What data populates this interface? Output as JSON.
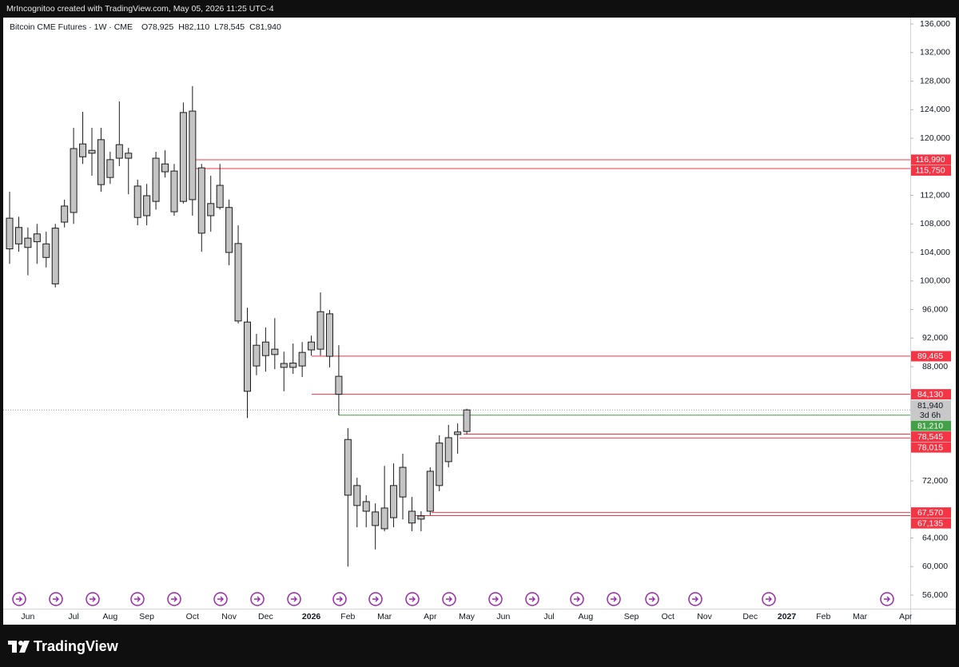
{
  "top_bar": "MrIncognitoo created with TradingView.com, May 05, 2026 11:25 UTC-4",
  "footer": "TradingView",
  "chart_data": {
    "type": "candlestick",
    "title": "Bitcoin CME Futures · 1W · CME",
    "ohlc_legend": [
      {
        "key": "O",
        "label": "78,925"
      },
      {
        "key": "H",
        "label": "82,110"
      },
      {
        "key": "L",
        "label": "78,545"
      },
      {
        "key": "C",
        "label": "81,940"
      }
    ],
    "categories": [
      null,
      null,
      "Jun",
      null,
      null,
      null,
      null,
      "Jul",
      null,
      null,
      null,
      "Aug",
      null,
      null,
      null,
      "Sep",
      null,
      null,
      null,
      null,
      "Oct",
      null,
      null,
      null,
      "Nov",
      null,
      null,
      null,
      "Dec",
      null,
      null,
      null,
      null,
      "2026",
      null,
      null,
      null,
      "Feb",
      null,
      null,
      null,
      "Mar",
      null,
      null,
      null,
      null,
      "Apr",
      null,
      null,
      null,
      "May",
      null,
      null,
      null,
      "Jun",
      null,
      null,
      null,
      null,
      "Jul",
      null,
      null,
      null,
      "Aug",
      null,
      null,
      null,
      null,
      "Sep",
      null,
      null,
      null,
      "Oct",
      null,
      null,
      null,
      "Nov",
      null,
      null,
      null,
      null,
      "Dec",
      null,
      null,
      null,
      "2027",
      null,
      null,
      null,
      "Feb",
      null,
      null,
      null,
      "Mar",
      null,
      null,
      null,
      null,
      "Apr"
    ],
    "open": [
      104500,
      105200,
      106000,
      105500,
      105200,
      99600,
      108250,
      109600,
      117400,
      118300,
      119800,
      114500,
      117200,
      117900,
      113300,
      109150,
      111150,
      116400,
      115400,
      111150,
      123800,
      115850,
      109150,
      113400,
      110300,
      105250,
      94250,
      88100,
      89550,
      90450,
      88450,
      87900,
      88100,
      90350,
      90450,
      95400,
      86650,
      77800,
      71350,
      69100,
      67650,
      65300,
      66850,
      73900,
      67750,
      67100,
      67750,
      71350,
      74700,
      78500,
      78925,
      null,
      null,
      null,
      null,
      null,
      null,
      null,
      null,
      null,
      null,
      null,
      null,
      null,
      null,
      null,
      null,
      null,
      null,
      null,
      null,
      null,
      null,
      null,
      null,
      null,
      null,
      null,
      null,
      null,
      null,
      null,
      null,
      null,
      null,
      null,
      null,
      null,
      null,
      null,
      null,
      null,
      null,
      null,
      null,
      null,
      null,
      null,
      null
    ],
    "high": [
      112500,
      109000,
      107500,
      108000,
      106900,
      108000,
      111400,
      121450,
      123700,
      121450,
      121450,
      118100,
      125150,
      118650,
      114200,
      113600,
      118100,
      118300,
      116400,
      125000,
      127300,
      116400,
      114750,
      116400,
      111400,
      107800,
      96250,
      92600,
      93500,
      94800,
      90100,
      91250,
      91450,
      92350,
      98400,
      95950,
      91000,
      79400,
      72450,
      70000,
      68850,
      74100,
      74450,
      75800,
      69750,
      67750,
      73900,
      78400,
      79850,
      80050,
      82110,
      null,
      null,
      null,
      null,
      null,
      null,
      null,
      null,
      null,
      null,
      null,
      null,
      null,
      null,
      null,
      null,
      null,
      null,
      null,
      null,
      null,
      null,
      null,
      null,
      null,
      null,
      null,
      null,
      null,
      null,
      null,
      null,
      null,
      null,
      null,
      null,
      null,
      null,
      null,
      null,
      null,
      null,
      null,
      null,
      null,
      null,
      null,
      null
    ],
    "low": [
      102400,
      104100,
      100800,
      102400,
      101900,
      99100,
      107500,
      108000,
      116400,
      114750,
      112500,
      113600,
      116100,
      112150,
      107800,
      107800,
      110000,
      114500,
      109150,
      110850,
      109150,
      104100,
      106900,
      110000,
      102200,
      94050,
      80800,
      86800,
      87300,
      87650,
      84550,
      87000,
      86550,
      89550,
      89550,
      87900,
      81200,
      60000,
      65500,
      65500,
      62400,
      64950,
      65500,
      66600,
      64950,
      64950,
      67200,
      70550,
      73900,
      75800,
      78545,
      null,
      null,
      null,
      null,
      null,
      null,
      null,
      null,
      null,
      null,
      null,
      null,
      null,
      null,
      null,
      null,
      null,
      null,
      null,
      null,
      null,
      null,
      null,
      null,
      null,
      null,
      null,
      null,
      null,
      null,
      null,
      null,
      null,
      null,
      null,
      null,
      null,
      null,
      null,
      null,
      null,
      null,
      null,
      null,
      null,
      null,
      null,
      null
    ],
    "close": [
      108800,
      107500,
      104700,
      106600,
      103300,
      107400,
      110500,
      118550,
      119200,
      117900,
      113500,
      117000,
      119100,
      117200,
      108900,
      111950,
      117200,
      115300,
      109700,
      123600,
      111400,
      106700,
      110850,
      110300,
      104000,
      94400,
      84550,
      91000,
      91450,
      89700,
      87900,
      88500,
      90000,
      91450,
      95700,
      89450,
      84130,
      70000,
      68550,
      67750,
      65750,
      68200,
      71350,
      69750,
      66100,
      66650,
      73350,
      77300,
      78050,
      78850,
      81940,
      null,
      null,
      null,
      null,
      null,
      null,
      null,
      null,
      null,
      null,
      null,
      null,
      null,
      null,
      null,
      null,
      null,
      null,
      null,
      null,
      null,
      null,
      null,
      null,
      null,
      null,
      null,
      null,
      null,
      null,
      null,
      null,
      null,
      null,
      null,
      null,
      null,
      null,
      null,
      null,
      null,
      null,
      null,
      null,
      null,
      null,
      null,
      null
    ],
    "body_color": "#c4c4c4",
    "outline_color": "#1c1c1c",
    "ylim": [
      54100,
      136900
    ],
    "yticks": [
      {
        "value": 136000,
        "label": "136,000"
      },
      {
        "value": 132000,
        "label": "132,000"
      },
      {
        "value": 128000,
        "label": "128,000"
      },
      {
        "value": 124000,
        "label": "124,000"
      },
      {
        "value": 120000,
        "label": "120,000"
      },
      {
        "value": 112000,
        "label": "112,000"
      },
      {
        "value": 108000,
        "label": "108,000"
      },
      {
        "value": 104000,
        "label": "104,000"
      },
      {
        "value": 100000,
        "label": "100,000"
      },
      {
        "value": 96000,
        "label": "96,000"
      },
      {
        "value": 92000,
        "label": "92,000"
      },
      {
        "value": 88000,
        "label": "88,000"
      },
      {
        "value": 72000,
        "label": "72,000"
      },
      {
        "value": 64000,
        "label": "64,000"
      },
      {
        "value": 60000,
        "label": "60,000"
      },
      {
        "value": 56000,
        "label": "56,000"
      }
    ],
    "grid": false,
    "last_price": {
      "label": "81,940",
      "countdown": "3d 6h",
      "color": "#c8c8c8"
    },
    "levels": [
      {
        "value": 116990,
        "label": "116,990",
        "color": "#f23645"
      },
      {
        "value": 115750,
        "label": "115,750",
        "color": "#f23645"
      },
      {
        "value": 89465,
        "label": "89,465",
        "color": "#f23645"
      },
      {
        "value": 84130,
        "label": "84,130",
        "color": "#f23645"
      },
      {
        "value": 81210,
        "label": "81,210",
        "color": "#43a047"
      },
      {
        "value": 78545,
        "label": "78,545",
        "color": "#f23645"
      },
      {
        "value": 78015,
        "label": "78,015",
        "color": "#f23645"
      },
      {
        "value": 67570,
        "label": "67,570",
        "color": "#f23645"
      },
      {
        "value": 67135,
        "label": "67,135",
        "color": "#f23645"
      }
    ]
  }
}
